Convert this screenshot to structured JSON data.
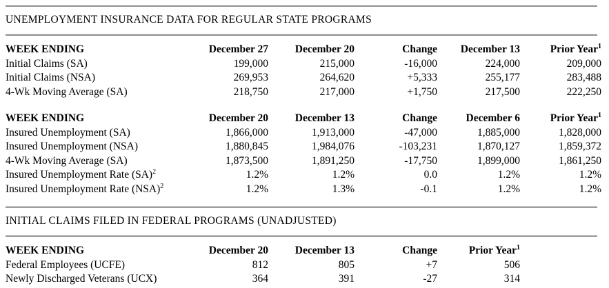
{
  "sections": {
    "state": {
      "title": "UNEMPLOYMENT INSURANCE DATA FOR REGULAR STATE PROGRAMS"
    },
    "federal": {
      "title": "INITIAL CLAIMS FILED IN FEDERAL PROGRAMS (UNADJUSTED)"
    }
  },
  "tables": {
    "initial_claims": {
      "header": {
        "label": "WEEK ENDING",
        "cols": [
          "December 27",
          "December 20",
          "Change",
          "December 13",
          "Prior Year"
        ],
        "prior_year_footnote": "1"
      },
      "rows": [
        {
          "label": "Initial Claims (SA)",
          "values": [
            "199,000",
            "215,000",
            "-16,000",
            "224,000",
            "209,000"
          ]
        },
        {
          "label": "Initial Claims (NSA)",
          "values": [
            "269,953",
            "264,620",
            "+5,333",
            "255,177",
            "283,488"
          ]
        },
        {
          "label": "4-Wk Moving Average (SA)",
          "values": [
            "218,750",
            "217,000",
            "+1,750",
            "217,500",
            "222,250"
          ]
        }
      ]
    },
    "insured_unemployment": {
      "header": {
        "label": "WEEK ENDING",
        "cols": [
          "December 20",
          "December 13",
          "Change",
          "December 6",
          "Prior Year"
        ],
        "prior_year_footnote": "1"
      },
      "rows": [
        {
          "label": "Insured Unemployment (SA)",
          "values": [
            "1,866,000",
            "1,913,000",
            "-47,000",
            "1,885,000",
            "1,828,000"
          ]
        },
        {
          "label": "Insured Unemployment (NSA)",
          "values": [
            "1,880,845",
            "1,984,076",
            "-103,231",
            "1,870,127",
            "1,859,372"
          ]
        },
        {
          "label": "4-Wk Moving Average (SA)",
          "values": [
            "1,873,500",
            "1,891,250",
            "-17,750",
            "1,899,000",
            "1,861,250"
          ]
        },
        {
          "label": "Insured Unemployment Rate (SA)",
          "footnote": "2",
          "values": [
            "1.2%",
            "1.2%",
            "0.0",
            "1.2%",
            "1.2%"
          ]
        },
        {
          "label": "Insured Unemployment Rate (NSA)",
          "footnote": "2",
          "values": [
            "1.2%",
            "1.3%",
            "-0.1",
            "1.2%",
            "1.2%"
          ]
        }
      ]
    },
    "federal_claims": {
      "header": {
        "label": "WEEK ENDING",
        "cols": [
          "December 20",
          "December 13",
          "Change",
          "Prior Year"
        ],
        "prior_year_footnote": "1"
      },
      "rows": [
        {
          "label": "Federal Employees (UCFE)",
          "values": [
            "812",
            "805",
            "+7",
            "506"
          ]
        },
        {
          "label": "Newly Discharged Veterans (UCX)",
          "values": [
            "364",
            "391",
            "-27",
            "314"
          ]
        }
      ]
    }
  }
}
